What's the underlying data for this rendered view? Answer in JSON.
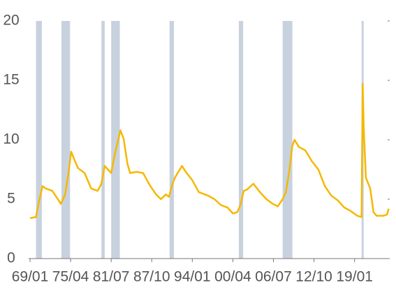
{
  "chart_data": {
    "type": "line",
    "x": [
      "69/01",
      "69/12",
      "70/06",
      "70/12",
      "71/06",
      "72/06",
      "73/06",
      "73/10",
      "74/06",
      "74/12",
      "75/05",
      "75/12",
      "76/06",
      "77/06",
      "78/06",
      "79/06",
      "80/01",
      "80/07",
      "81/01",
      "81/07",
      "82/01",
      "82/06",
      "82/12",
      "83/06",
      "84/01",
      "84/06",
      "85/06",
      "86/06",
      "87/06",
      "88/06",
      "89/03",
      "89/12",
      "90/06",
      "91/01",
      "91/06",
      "92/06",
      "93/01",
      "94/01",
      "95/01",
      "96/06",
      "97/06",
      "98/06",
      "99/06",
      "00/04",
      "00/12",
      "01/06",
      "01/12",
      "02/06",
      "03/06",
      "04/06",
      "05/06",
      "06/06",
      "07/03",
      "07/12",
      "08/06",
      "08/12",
      "09/06",
      "09/10",
      "10/06",
      "11/06",
      "12/06",
      "13/06",
      "14/06",
      "15/06",
      "16/06",
      "17/06",
      "18/06",
      "19/06",
      "20/02",
      "20/04",
      "20/06",
      "20/10",
      "21/06",
      "21/12",
      "22/06",
      "23/06",
      "24/01",
      "24/04"
    ],
    "values": [
      3.4,
      3.5,
      4.9,
      6.1,
      5.9,
      5.7,
      4.9,
      4.6,
      5.4,
      7.2,
      9.0,
      8.2,
      7.6,
      7.2,
      5.9,
      5.7,
      6.3,
      7.8,
      7.5,
      7.2,
      8.6,
      9.6,
      10.8,
      10.1,
      8.0,
      7.2,
      7.3,
      7.2,
      6.2,
      5.4,
      5.0,
      5.4,
      5.2,
      6.4,
      6.9,
      7.8,
      7.3,
      6.6,
      5.6,
      5.3,
      5.0,
      4.5,
      4.3,
      3.8,
      3.9,
      4.5,
      5.7,
      5.8,
      6.3,
      5.6,
      5.0,
      4.6,
      4.4,
      5.0,
      5.6,
      7.3,
      9.5,
      10.0,
      9.4,
      9.1,
      8.2,
      7.5,
      6.1,
      5.3,
      4.9,
      4.3,
      4.0,
      3.6,
      3.5,
      14.7,
      11.0,
      6.8,
      5.9,
      3.9,
      3.6,
      3.6,
      3.7,
      4.2
    ],
    "color": "#f5b800",
    "recessions": [
      [
        "69/12",
        "70/11"
      ],
      [
        "73/11",
        "75/03"
      ],
      [
        "80/01",
        "80/07"
      ],
      [
        "81/07",
        "82/11"
      ],
      [
        "90/07",
        "91/03"
      ],
      [
        "01/03",
        "01/11"
      ],
      [
        "07/12",
        "09/06"
      ],
      [
        "20/02",
        "20/04"
      ]
    ],
    "recession_color": "#c8d2df",
    "xlim": [
      "69/01",
      "24/06"
    ],
    "xticks": [
      "69/01",
      "75/04",
      "81/07",
      "87/10",
      "94/01",
      "00/04",
      "06/07",
      "12/10",
      "19/01"
    ],
    "ylim": [
      0,
      20
    ],
    "yticks": [
      0,
      5,
      10,
      15,
      20
    ]
  }
}
